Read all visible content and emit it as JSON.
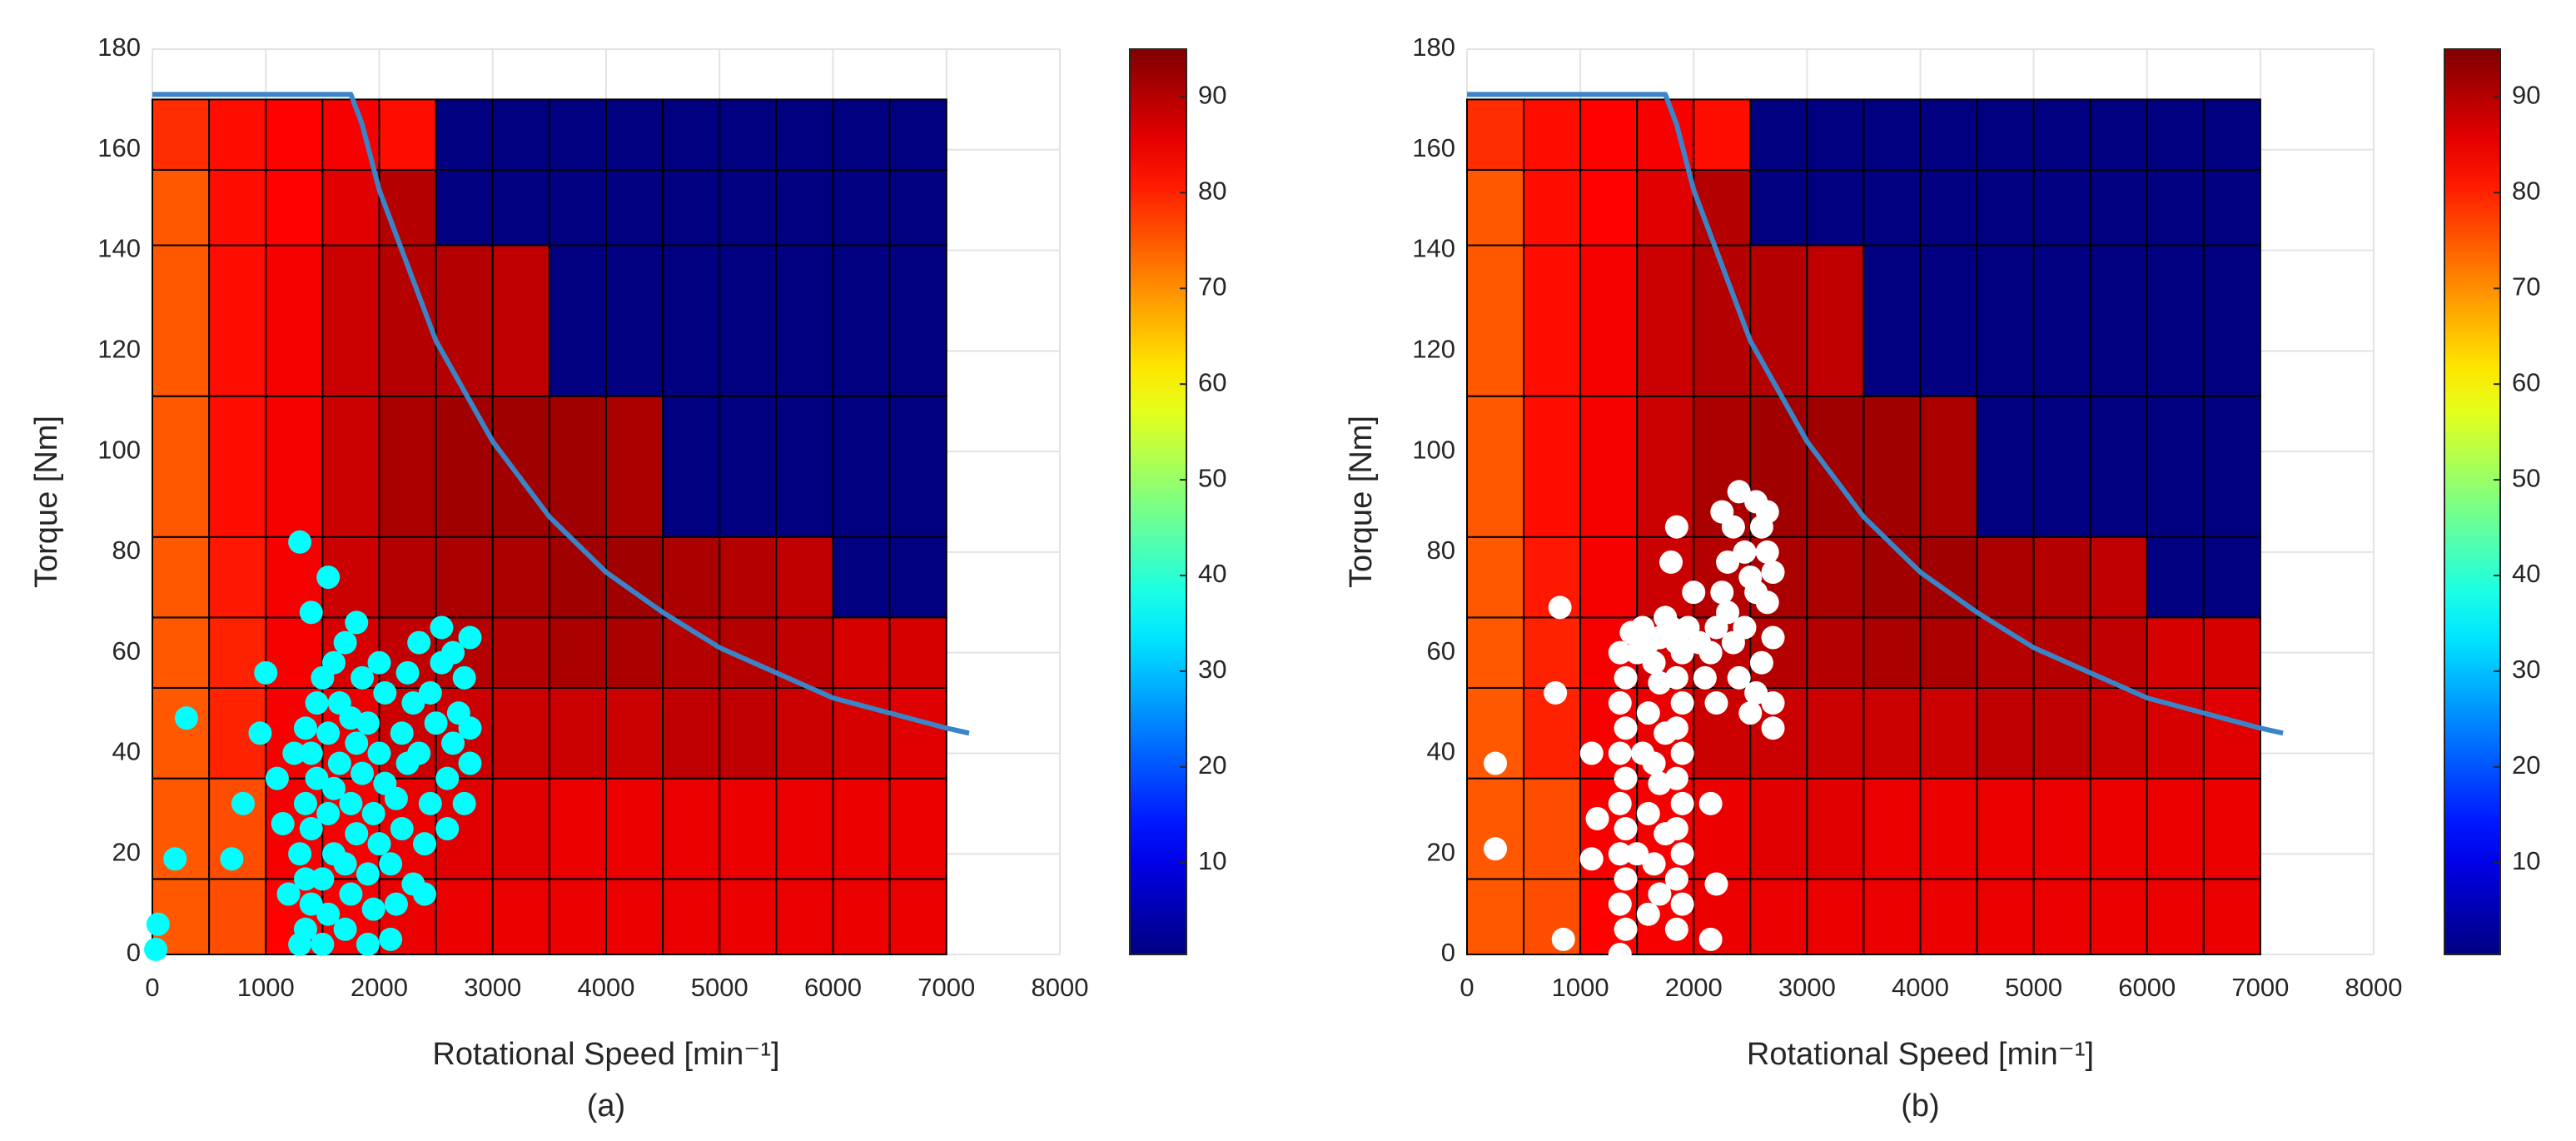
{
  "chart_data": [
    {
      "type": "heatmap",
      "caption": "(a)",
      "xlabel": "Rotational Speed [min⁻¹]",
      "ylabel": "Torque [Nm]",
      "xlim": [
        0,
        8000
      ],
      "ylim": [
        0,
        180
      ],
      "xticks": [
        0,
        1000,
        2000,
        3000,
        4000,
        5000,
        6000,
        7000,
        8000
      ],
      "yticks": [
        0,
        20,
        40,
        60,
        80,
        100,
        120,
        140,
        160,
        180
      ],
      "grid": true,
      "colormap": "jet",
      "clim": [
        0.4,
        95
      ],
      "colorbar_ticks": [
        10,
        20,
        30,
        40,
        50,
        60,
        70,
        80,
        90
      ],
      "x_edges": [
        0,
        500,
        1000,
        1500,
        2000,
        2500,
        3000,
        3500,
        4000,
        4500,
        5000,
        5500,
        6000,
        6500,
        7000
      ],
      "y_edges": [
        0,
        15,
        35,
        53,
        67,
        83,
        111,
        141,
        156,
        170
      ],
      "values": [
        [
          75,
          76,
          83,
          84,
          85,
          85,
          85,
          85,
          85,
          85,
          85,
          85,
          85,
          85
        ],
        [
          75,
          76,
          84,
          84,
          85,
          86,
          86,
          85,
          85,
          85,
          85,
          85,
          85,
          85
        ],
        [
          75,
          80,
          84,
          85,
          88,
          88,
          88,
          88,
          88,
          89,
          89,
          88,
          87,
          86
        ],
        [
          75,
          80,
          84,
          87,
          89,
          90,
          90,
          91,
          91,
          90,
          90,
          89,
          87,
          87
        ],
        [
          75,
          81,
          84,
          88,
          90,
          91,
          91,
          92,
          92,
          91,
          90,
          89,
          0.5,
          0.5
        ],
        [
          75,
          82,
          84,
          88,
          91,
          92,
          92,
          92,
          91,
          0.5,
          0.5,
          0.5,
          0.5,
          0.5
        ],
        [
          75,
          82,
          84,
          88,
          90,
          90,
          89,
          0.5,
          0.5,
          0.5,
          0.5,
          0.5,
          0.5,
          0.5
        ],
        [
          75,
          82,
          83,
          86,
          90,
          0.5,
          0.5,
          0.5,
          0.5,
          0.5,
          0.5,
          0.5,
          0.5,
          0.5
        ],
        [
          79,
          82,
          83,
          84,
          82,
          0.5,
          0.5,
          0.5,
          0.5,
          0.5,
          0.5,
          0.5,
          0.5,
          0.5
        ]
      ],
      "line": {
        "color": "#3a84c8",
        "x": [
          0,
          1750,
          1850,
          2000,
          2500,
          3000,
          3500,
          4000,
          4500,
          5000,
          5500,
          6000,
          6500,
          7000,
          7200
        ],
        "y": [
          171,
          171,
          165,
          152,
          122,
          102,
          87,
          76,
          68,
          61,
          56,
          51,
          48,
          45,
          44
        ]
      },
      "scatter": {
        "color": "#00ffff",
        "x": [
          30,
          50,
          200,
          300,
          700,
          800,
          1000,
          950,
          1100,
          1150,
          1200,
          1250,
          1300,
          1400,
          1550,
          1300,
          1350,
          1400,
          1350,
          1300,
          1400,
          1350,
          1450,
          1400,
          1350,
          1450,
          1500,
          1500,
          1550,
          1500,
          1600,
          1550,
          1600,
          1650,
          1550,
          1650,
          1600,
          1700,
          1700,
          1750,
          1700,
          1800,
          1750,
          1850,
          1800,
          1750,
          1850,
          1800,
          1900,
          1950,
          1900,
          2000,
          1950,
          2050,
          2000,
          1900,
          2050,
          2000,
          2100,
          2150,
          2100,
          2200,
          2150,
          2250,
          2200,
          2300,
          2250,
          2350,
          2300,
          2400,
          2450,
          2350,
          2500,
          2450,
          2550,
          2550,
          2600,
          2650,
          2700,
          2750,
          2800,
          2800,
          2750,
          2800,
          2650,
          2400,
          2600
        ],
        "y": [
          1,
          6,
          19,
          47,
          19,
          30,
          56,
          44,
          35,
          26,
          12,
          40,
          82,
          68,
          75,
          2,
          5,
          10,
          15,
          20,
          25,
          30,
          35,
          40,
          45,
          50,
          55,
          2,
          8,
          15,
          20,
          28,
          33,
          38,
          44,
          50,
          58,
          62,
          5,
          12,
          18,
          24,
          30,
          36,
          42,
          47,
          55,
          66,
          2,
          9,
          16,
          22,
          28,
          34,
          40,
          46,
          52,
          58,
          3,
          10,
          18,
          25,
          31,
          38,
          44,
          50,
          56,
          62,
          14,
          22,
          30,
          40,
          46,
          52,
          58,
          65,
          35,
          42,
          48,
          30,
          38,
          45,
          55,
          63,
          60,
          12,
          25
        ]
      }
    },
    {
      "type": "heatmap",
      "caption": "(b)",
      "xlabel": "Rotational Speed [min⁻¹]",
      "ylabel": "Torque [Nm]",
      "xlim": [
        0,
        8000
      ],
      "ylim": [
        0,
        180
      ],
      "xticks": [
        0,
        1000,
        2000,
        3000,
        4000,
        5000,
        6000,
        7000,
        8000
      ],
      "yticks": [
        0,
        20,
        40,
        60,
        80,
        100,
        120,
        140,
        160,
        180
      ],
      "grid": true,
      "colormap": "jet",
      "clim": [
        0.4,
        95
      ],
      "colorbar_ticks": [
        10,
        20,
        30,
        40,
        50,
        60,
        70,
        80,
        90
      ],
      "x_edges": [
        0,
        500,
        1000,
        1500,
        2000,
        2500,
        3000,
        3500,
        4000,
        4500,
        5000,
        5500,
        6000,
        6500,
        7000
      ],
      "y_edges": [
        0,
        15,
        35,
        53,
        67,
        83,
        111,
        141,
        156,
        170
      ],
      "values": [
        [
          75,
          76,
          83,
          84,
          85,
          85,
          85,
          85,
          85,
          85,
          85,
          85,
          85,
          85
        ],
        [
          75,
          76,
          84,
          84,
          85,
          86,
          86,
          85,
          85,
          85,
          85,
          85,
          85,
          85
        ],
        [
          75,
          80,
          84,
          85,
          88,
          88,
          88,
          88,
          88,
          89,
          89,
          88,
          87,
          86
        ],
        [
          75,
          80,
          84,
          87,
          89,
          90,
          90,
          91,
          91,
          90,
          90,
          89,
          87,
          87
        ],
        [
          75,
          81,
          84,
          88,
          90,
          91,
          91,
          92,
          92,
          91,
          90,
          89,
          0.5,
          0.5
        ],
        [
          75,
          82,
          84,
          88,
          91,
          92,
          92,
          92,
          91,
          0.5,
          0.5,
          0.5,
          0.5,
          0.5
        ],
        [
          75,
          82,
          84,
          88,
          90,
          90,
          89,
          0.5,
          0.5,
          0.5,
          0.5,
          0.5,
          0.5,
          0.5
        ],
        [
          75,
          82,
          83,
          86,
          90,
          0.5,
          0.5,
          0.5,
          0.5,
          0.5,
          0.5,
          0.5,
          0.5,
          0.5
        ],
        [
          79,
          82,
          83,
          84,
          82,
          0.5,
          0.5,
          0.5,
          0.5,
          0.5,
          0.5,
          0.5,
          0.5,
          0.5
        ]
      ],
      "line": {
        "color": "#3a84c8",
        "x": [
          0,
          1750,
          1850,
          2000,
          2500,
          3000,
          3500,
          4000,
          4500,
          5000,
          5500,
          6000,
          6500,
          7000,
          7200
        ],
        "y": [
          171,
          171,
          165,
          152,
          122,
          102,
          87,
          76,
          68,
          61,
          56,
          51,
          48,
          45,
          44
        ]
      },
      "scatter": {
        "color": "#ffffff",
        "x": [
          250,
          250,
          850,
          780,
          820,
          1100,
          1150,
          1100,
          2150,
          2200,
          2150,
          1350,
          1400,
          1350,
          1400,
          1350,
          1400,
          1350,
          1400,
          1350,
          1400,
          1350,
          1400,
          1350,
          1450,
          1500,
          1550,
          1600,
          1650,
          1700,
          1750,
          1800,
          1850,
          1900,
          1950,
          1850,
          1900,
          1850,
          1900,
          1850,
          1900,
          1850,
          1900,
          1850,
          1900,
          1850,
          1600,
          1650,
          1600,
          1650,
          1600,
          1700,
          1750,
          1700,
          1750,
          1700,
          1500,
          1550,
          1800,
          1850,
          2000,
          2050,
          2100,
          2150,
          2200,
          2250,
          2300,
          2350,
          2400,
          2450,
          2500,
          2550,
          2600,
          2650,
          2700,
          2650,
          2700,
          2600,
          2550,
          2500,
          2400,
          2350,
          2300,
          2250,
          2450,
          2700,
          2700,
          2650,
          2550,
          2200
        ],
        "y": [
          38,
          21,
          3,
          52,
          69,
          40,
          27,
          19,
          3,
          14,
          30,
          0,
          5,
          10,
          15,
          20,
          25,
          30,
          35,
          40,
          45,
          50,
          55,
          60,
          64,
          60,
          65,
          62,
          58,
          63,
          67,
          65,
          62,
          60,
          65,
          5,
          10,
          15,
          20,
          25,
          30,
          35,
          40,
          45,
          50,
          55,
          8,
          18,
          28,
          38,
          48,
          12,
          24,
          34,
          44,
          54,
          20,
          40,
          78,
          85,
          72,
          62,
          55,
          60,
          65,
          72,
          78,
          85,
          92,
          80,
          75,
          90,
          85,
          80,
          76,
          70,
          63,
          58,
          52,
          48,
          55,
          62,
          68,
          88,
          65,
          50,
          45,
          88,
          72,
          50
        ]
      }
    }
  ]
}
